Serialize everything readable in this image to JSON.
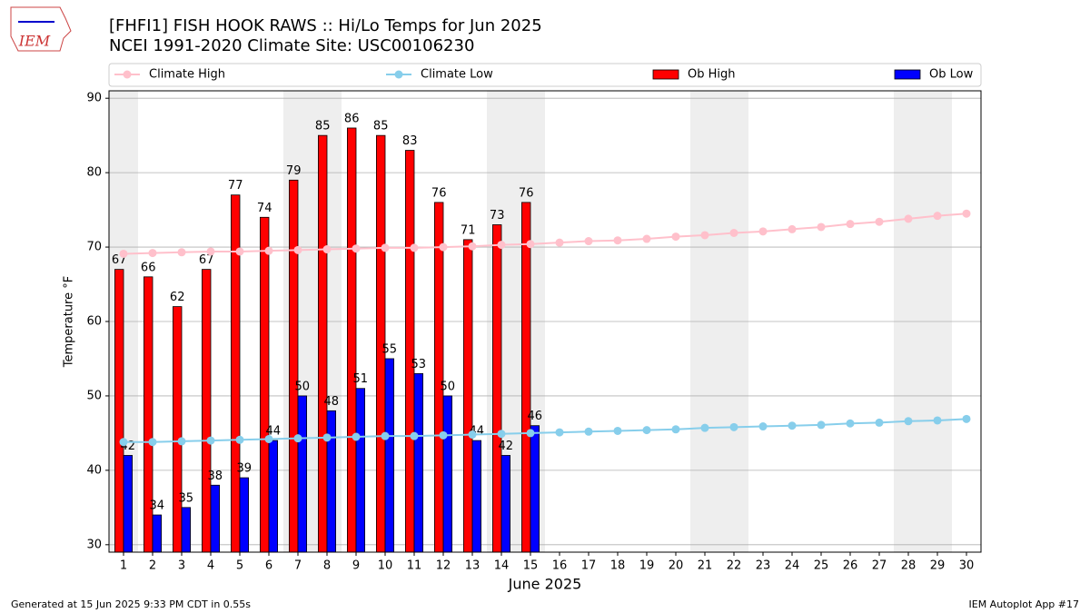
{
  "chart_data": {
    "type": "bar",
    "title": "[FHFI1] FISH HOOK RAWS :: Hi/Lo Temps for Jun 2025",
    "subtitle": "NCEI 1991-2020 Climate Site: USC00106230",
    "logo_text": "IEM",
    "ylabel": "Temperature $^\\circ$F",
    "xlabel": "June 2025",
    "footer_left": "Generated at 15 Jun 2025 9:33 PM CDT in 0.55s",
    "footer_right": "IEM Autoplot App #17",
    "x": [
      1,
      2,
      3,
      4,
      5,
      6,
      7,
      8,
      9,
      10,
      11,
      12,
      13,
      14,
      15,
      16,
      17,
      18,
      19,
      20,
      21,
      22,
      23,
      24,
      25,
      26,
      27,
      28,
      29,
      30
    ],
    "xlim": [
      0.5,
      30.5
    ],
    "ylim": [
      29,
      91
    ],
    "yticks": [
      30,
      40,
      50,
      60,
      70,
      80,
      90
    ],
    "grid": true,
    "shaded_days": [
      1,
      7,
      8,
      14,
      15,
      21,
      22,
      28,
      29
    ],
    "series": [
      {
        "name": "Climate High",
        "type": "line",
        "color": "#ffc0cb",
        "values": [
          69.1,
          69.2,
          69.3,
          69.4,
          69.4,
          69.5,
          69.6,
          69.7,
          69.8,
          69.9,
          69.9,
          70.0,
          70.1,
          70.3,
          70.4,
          70.6,
          70.8,
          70.9,
          71.1,
          71.4,
          71.6,
          71.9,
          72.1,
          72.4,
          72.7,
          73.1,
          73.4,
          73.8,
          74.2,
          74.5
        ]
      },
      {
        "name": "Climate Low",
        "type": "line",
        "color": "#87ceeb",
        "values": [
          43.8,
          43.8,
          43.9,
          44.0,
          44.1,
          44.2,
          44.3,
          44.4,
          44.5,
          44.6,
          44.6,
          44.7,
          44.8,
          44.9,
          45.0,
          45.1,
          45.2,
          45.3,
          45.4,
          45.5,
          45.7,
          45.8,
          45.9,
          46.0,
          46.1,
          46.3,
          46.4,
          46.6,
          46.7,
          46.9
        ]
      },
      {
        "name": "Ob High",
        "type": "bar",
        "color": "#ff0000",
        "values": [
          67,
          66,
          62,
          67,
          77,
          74,
          79,
          85,
          86,
          85,
          83,
          76,
          71,
          73,
          76,
          null,
          null,
          null,
          null,
          null,
          null,
          null,
          null,
          null,
          null,
          null,
          null,
          null,
          null,
          null
        ]
      },
      {
        "name": "Ob Low",
        "type": "bar",
        "color": "#0000ff",
        "values": [
          42,
          34,
          35,
          38,
          39,
          44,
          50,
          48,
          51,
          55,
          53,
          50,
          44,
          42,
          46,
          null,
          null,
          null,
          null,
          null,
          null,
          null,
          null,
          null,
          null,
          null,
          null,
          null,
          null,
          null
        ]
      }
    ]
  }
}
